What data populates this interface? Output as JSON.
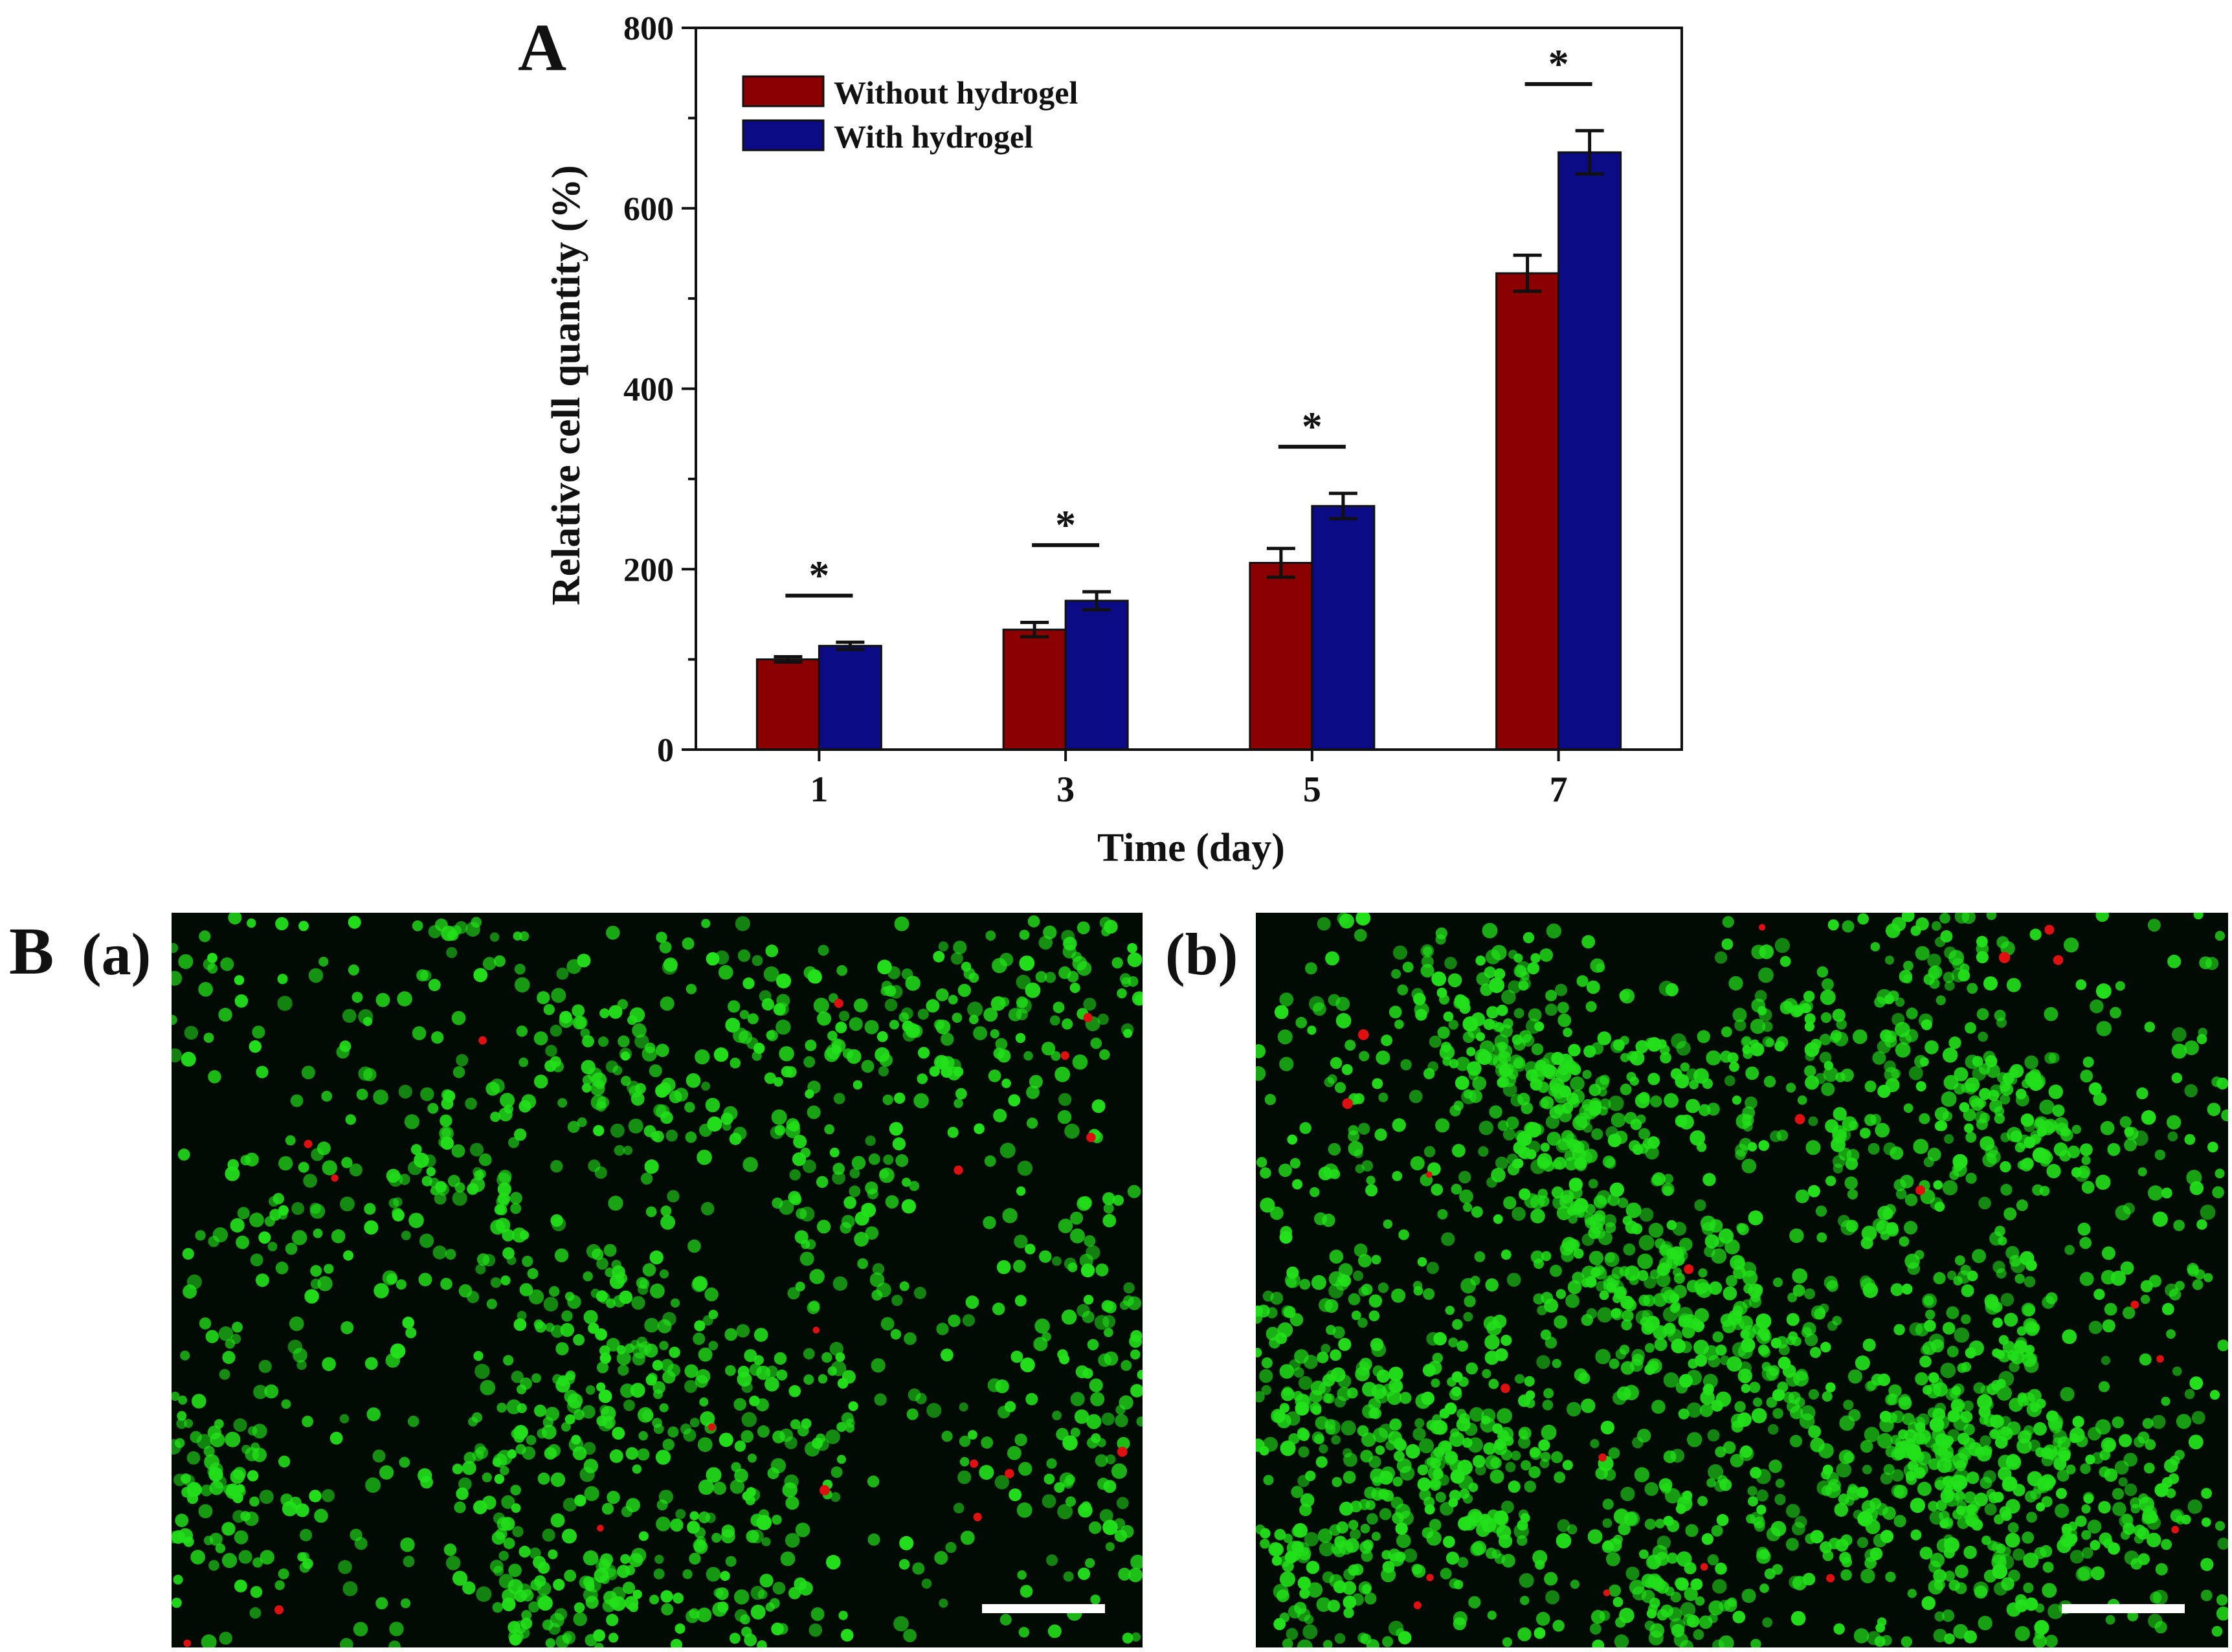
{
  "panel_labels": {
    "A": "A",
    "B": "B",
    "a": "(a)",
    "b": "(b)"
  },
  "chart_data": {
    "type": "bar",
    "title": "",
    "xlabel": "Time (day)",
    "ylabel": "Relative cell quantity (%)",
    "ylim": [
      0,
      800
    ],
    "yticks": [
      "0",
      "200",
      "400",
      "600",
      "800"
    ],
    "categories": [
      "1",
      "3",
      "5",
      "7"
    ],
    "series": [
      {
        "name": "Without hydrogel",
        "color": "#8b0000",
        "values": [
          100,
          133,
          207,
          528
        ],
        "errors": [
          3,
          8,
          16,
          20
        ]
      },
      {
        "name": "With hydrogel",
        "color": "#0b0b86",
        "values": [
          115,
          165,
          270,
          662
        ],
        "errors": [
          4,
          10,
          14,
          24
        ]
      }
    ],
    "significance": [
      "*",
      "*",
      "*",
      "*"
    ],
    "legend_position": "top-left",
    "grid": false
  },
  "images": [
    {
      "label": "(a)",
      "description_color_live": "#22e01a",
      "description_color_dead": "#e01010"
    },
    {
      "label": "(b)",
      "description_color_live": "#22e01a",
      "description_color_dead": "#e01010"
    }
  ]
}
